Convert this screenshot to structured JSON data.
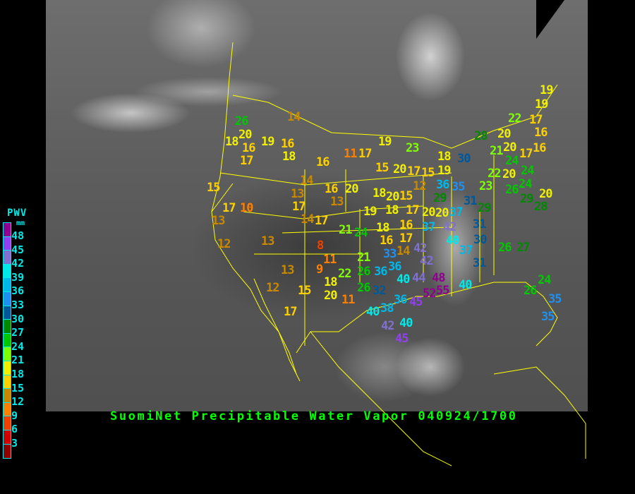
{
  "title": "SuomiNet Precipitable Water Vapor 040924/1700",
  "legend": {
    "title": "PWV",
    "unit": "mm",
    "labels": [
      "48",
      "45",
      "42",
      "39",
      "36",
      "33",
      "30",
      "27",
      "24",
      "21",
      "18",
      "15",
      "12",
      "9",
      "6",
      "3"
    ],
    "colors": [
      "#900090",
      "#9040f0",
      "#8070d0",
      "#00e8e8",
      "#00b8e8",
      "#2090f0",
      "#005898",
      "#008800",
      "#00c800",
      "#80ff00",
      "#f0f000",
      "#ffd000",
      "#c88800",
      "#ff8000",
      "#f04000",
      "#d00000",
      "#900000"
    ]
  },
  "stations": [
    14,
    26,
    20,
    18,
    16,
    19,
    16,
    17,
    18,
    16,
    11,
    17,
    19,
    15,
    20,
    16,
    20,
    14,
    13,
    13,
    15,
    17,
    10,
    13,
    17,
    14,
    17,
    12,
    13,
    8,
    21,
    24,
    19,
    18,
    17,
    20,
    18,
    16,
    17,
    16,
    14,
    13,
    11,
    9,
    21,
    26,
    22,
    18,
    20,
    12,
    15,
    11,
    17,
    26,
    32,
    33,
    36,
    36,
    40,
    44,
    42,
    42,
    37,
    42,
    40,
    37,
    31,
    30,
    31,
    20,
    37,
    29,
    35,
    36,
    31,
    29,
    48,
    55,
    52,
    40,
    36,
    38,
    45,
    40,
    40,
    42,
    45,
    26,
    27,
    24,
    26,
    35,
    35,
    19,
    19,
    22,
    28,
    20,
    17,
    16,
    20,
    23,
    18,
    30,
    21,
    16,
    17,
    24,
    20,
    22,
    24,
    24,
    15,
    19,
    12,
    17,
    15,
    20,
    18,
    23,
    26,
    29,
    20,
    28
  ]
}
